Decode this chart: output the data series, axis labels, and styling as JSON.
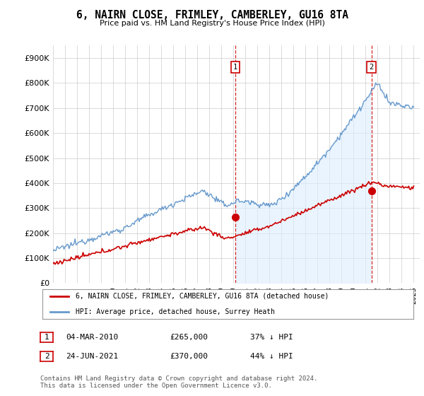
{
  "title": "6, NAIRN CLOSE, FRIMLEY, CAMBERLEY, GU16 8TA",
  "subtitle": "Price paid vs. HM Land Registry's House Price Index (HPI)",
  "ylim": [
    0,
    950000
  ],
  "yticks": [
    0,
    100000,
    200000,
    300000,
    400000,
    500000,
    600000,
    700000,
    800000,
    900000
  ],
  "ytick_labels": [
    "£0",
    "£100K",
    "£200K",
    "£300K",
    "£400K",
    "£500K",
    "£600K",
    "£700K",
    "£800K",
    "£900K"
  ],
  "xlim_start": 1995.0,
  "xlim_end": 2025.5,
  "hpi_color": "#6699cc",
  "hpi_fill_color": "#ddeeff",
  "price_color": "#cc0000",
  "marker1_x": 2010.17,
  "marker1_y": 265000,
  "marker2_x": 2021.48,
  "marker2_y": 370000,
  "vline1_x": 2010.17,
  "vline2_x": 2021.48,
  "legend_line1": "6, NAIRN CLOSE, FRIMLEY, CAMBERLEY, GU16 8TA (detached house)",
  "legend_line2": "HPI: Average price, detached house, Surrey Heath",
  "table_row1": [
    "1",
    "04-MAR-2010",
    "£265,000",
    "37% ↓ HPI"
  ],
  "table_row2": [
    "2",
    "24-JUN-2021",
    "£370,000",
    "44% ↓ HPI"
  ],
  "footer": "Contains HM Land Registry data © Crown copyright and database right 2024.\nThis data is licensed under the Open Government Licence v3.0.",
  "background_color": "#ffffff",
  "grid_color": "#cccccc"
}
